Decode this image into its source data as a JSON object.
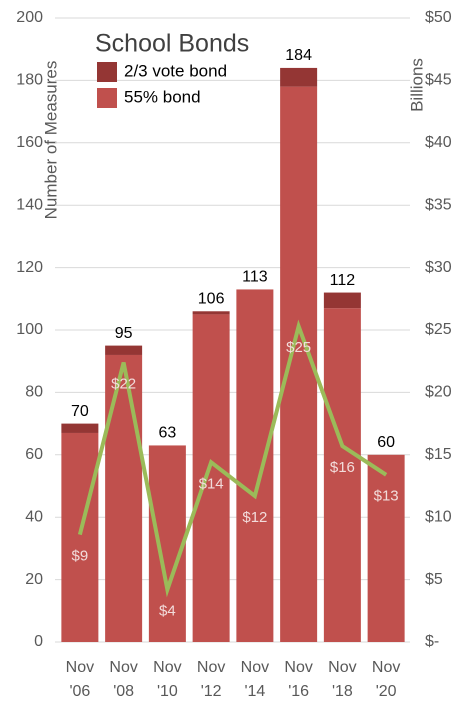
{
  "chart_data": {
    "type": "bar",
    "title": "School Bonds",
    "y_label": "Number of Measures",
    "y2_label": "Billions",
    "categories": [
      "Nov '06",
      "Nov '08",
      "Nov '10",
      "Nov '12",
      "Nov '14",
      "Nov '16",
      "Nov '18",
      "Nov '20"
    ],
    "stacked": true,
    "series": [
      {
        "name": "55% bond",
        "color": "#c0504d",
        "values": [
          67,
          92,
          63,
          105,
          113,
          178,
          107,
          60
        ]
      },
      {
        "name": "2/3 vote bond",
        "color": "#943634",
        "values": [
          3,
          3,
          0,
          1,
          0,
          6,
          5,
          0
        ]
      },
      {
        "name": "Billions",
        "type": "line",
        "axis": "y2",
        "color": "#9bbb59",
        "values": [
          8.6,
          22.4,
          4.2,
          14.4,
          11.7,
          25.3,
          15.7,
          13.4
        ],
        "value_labels": [
          "$9",
          "$22",
          "$4",
          "$14",
          "$12",
          "$25",
          "$16",
          "$13"
        ]
      }
    ],
    "total_labels": [
      70,
      95,
      63,
      106,
      113,
      184,
      112,
      60
    ],
    "ylim": [
      0,
      200
    ],
    "yticks": [
      0,
      20,
      40,
      60,
      80,
      100,
      120,
      140,
      160,
      180,
      200
    ],
    "y2lim": [
      0,
      50
    ],
    "y2ticks": [
      {
        "value": 0,
        "label": "$-"
      },
      {
        "value": 5,
        "label": "$5"
      },
      {
        "value": 10,
        "label": "$10"
      },
      {
        "value": 15,
        "label": "$15"
      },
      {
        "value": 20,
        "label": "$20"
      },
      {
        "value": 25,
        "label": "$25"
      },
      {
        "value": 30,
        "label": "$30"
      },
      {
        "value": 35,
        "label": "$35"
      },
      {
        "value": 40,
        "label": "$40"
      },
      {
        "value": 45,
        "label": "$45"
      },
      {
        "value": 50,
        "label": "$50"
      }
    ],
    "grid": true
  }
}
